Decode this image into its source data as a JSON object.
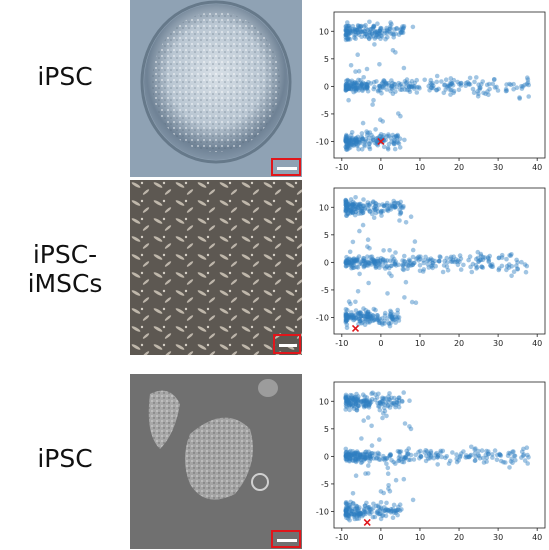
{
  "rows": [
    {
      "label": "iPSC",
      "image": "ipsc-colony-micrograph"
    },
    {
      "label": "iPSC-iMSCs",
      "image": "imsc-fibroblast-micrograph"
    },
    {
      "label": "iPSC",
      "image": "ipsc-colonies-micrograph"
    }
  ],
  "colors": {
    "point": "#2f7fc1",
    "marker": "#e0161b",
    "scale_box": "#e0161b"
  },
  "chart_data": [
    {
      "type": "scatter",
      "title": "",
      "xlabel": "",
      "ylabel": "",
      "xlim": [
        -12,
        42
      ],
      "ylim": [
        -13,
        13.5
      ],
      "xticks": [
        -10,
        0,
        10,
        20,
        30,
        40
      ],
      "yticks": [
        -10,
        -5,
        0,
        5,
        10
      ],
      "grid": false,
      "clusters": [
        {
          "name_hint": "upper",
          "y_center": 10,
          "x_range": [
            -9,
            6
          ]
        },
        {
          "name_hint": "middle",
          "y_center": 0,
          "x_range": [
            -9,
            38
          ]
        },
        {
          "name_hint": "lower",
          "y_center": -10,
          "x_range": [
            -9,
            5
          ]
        }
      ],
      "highlight": {
        "marker": "x",
        "x": 0,
        "y": -10
      }
    },
    {
      "type": "scatter",
      "title": "",
      "xlabel": "",
      "ylabel": "",
      "xlim": [
        -12,
        42
      ],
      "ylim": [
        -13,
        13.5
      ],
      "xticks": [
        -10,
        0,
        10,
        20,
        30,
        40
      ],
      "yticks": [
        -10,
        -5,
        0,
        5,
        10
      ],
      "grid": false,
      "clusters": [
        {
          "name_hint": "upper",
          "y_center": 10,
          "x_range": [
            -9,
            6
          ]
        },
        {
          "name_hint": "middle",
          "y_center": 0,
          "x_range": [
            -9,
            38
          ]
        },
        {
          "name_hint": "lower",
          "y_center": -10,
          "x_range": [
            -9,
            5
          ]
        }
      ],
      "highlight": {
        "marker": "x",
        "x": -6.5,
        "y": -12
      }
    },
    {
      "type": "scatter",
      "title": "",
      "xlabel": "",
      "ylabel": "",
      "xlim": [
        -12,
        42
      ],
      "ylim": [
        -13,
        13.5
      ],
      "xticks": [
        -10,
        0,
        10,
        20,
        30,
        40
      ],
      "yticks": [
        -10,
        -5,
        0,
        5,
        10
      ],
      "grid": false,
      "clusters": [
        {
          "name_hint": "upper",
          "y_center": 10,
          "x_range": [
            -9,
            6
          ]
        },
        {
          "name_hint": "middle",
          "y_center": 0,
          "x_range": [
            -9,
            38
          ]
        },
        {
          "name_hint": "lower",
          "y_center": -10,
          "x_range": [
            -9,
            5
          ]
        }
      ],
      "highlight": {
        "marker": "x",
        "x": -3.5,
        "y": -12
      }
    }
  ]
}
